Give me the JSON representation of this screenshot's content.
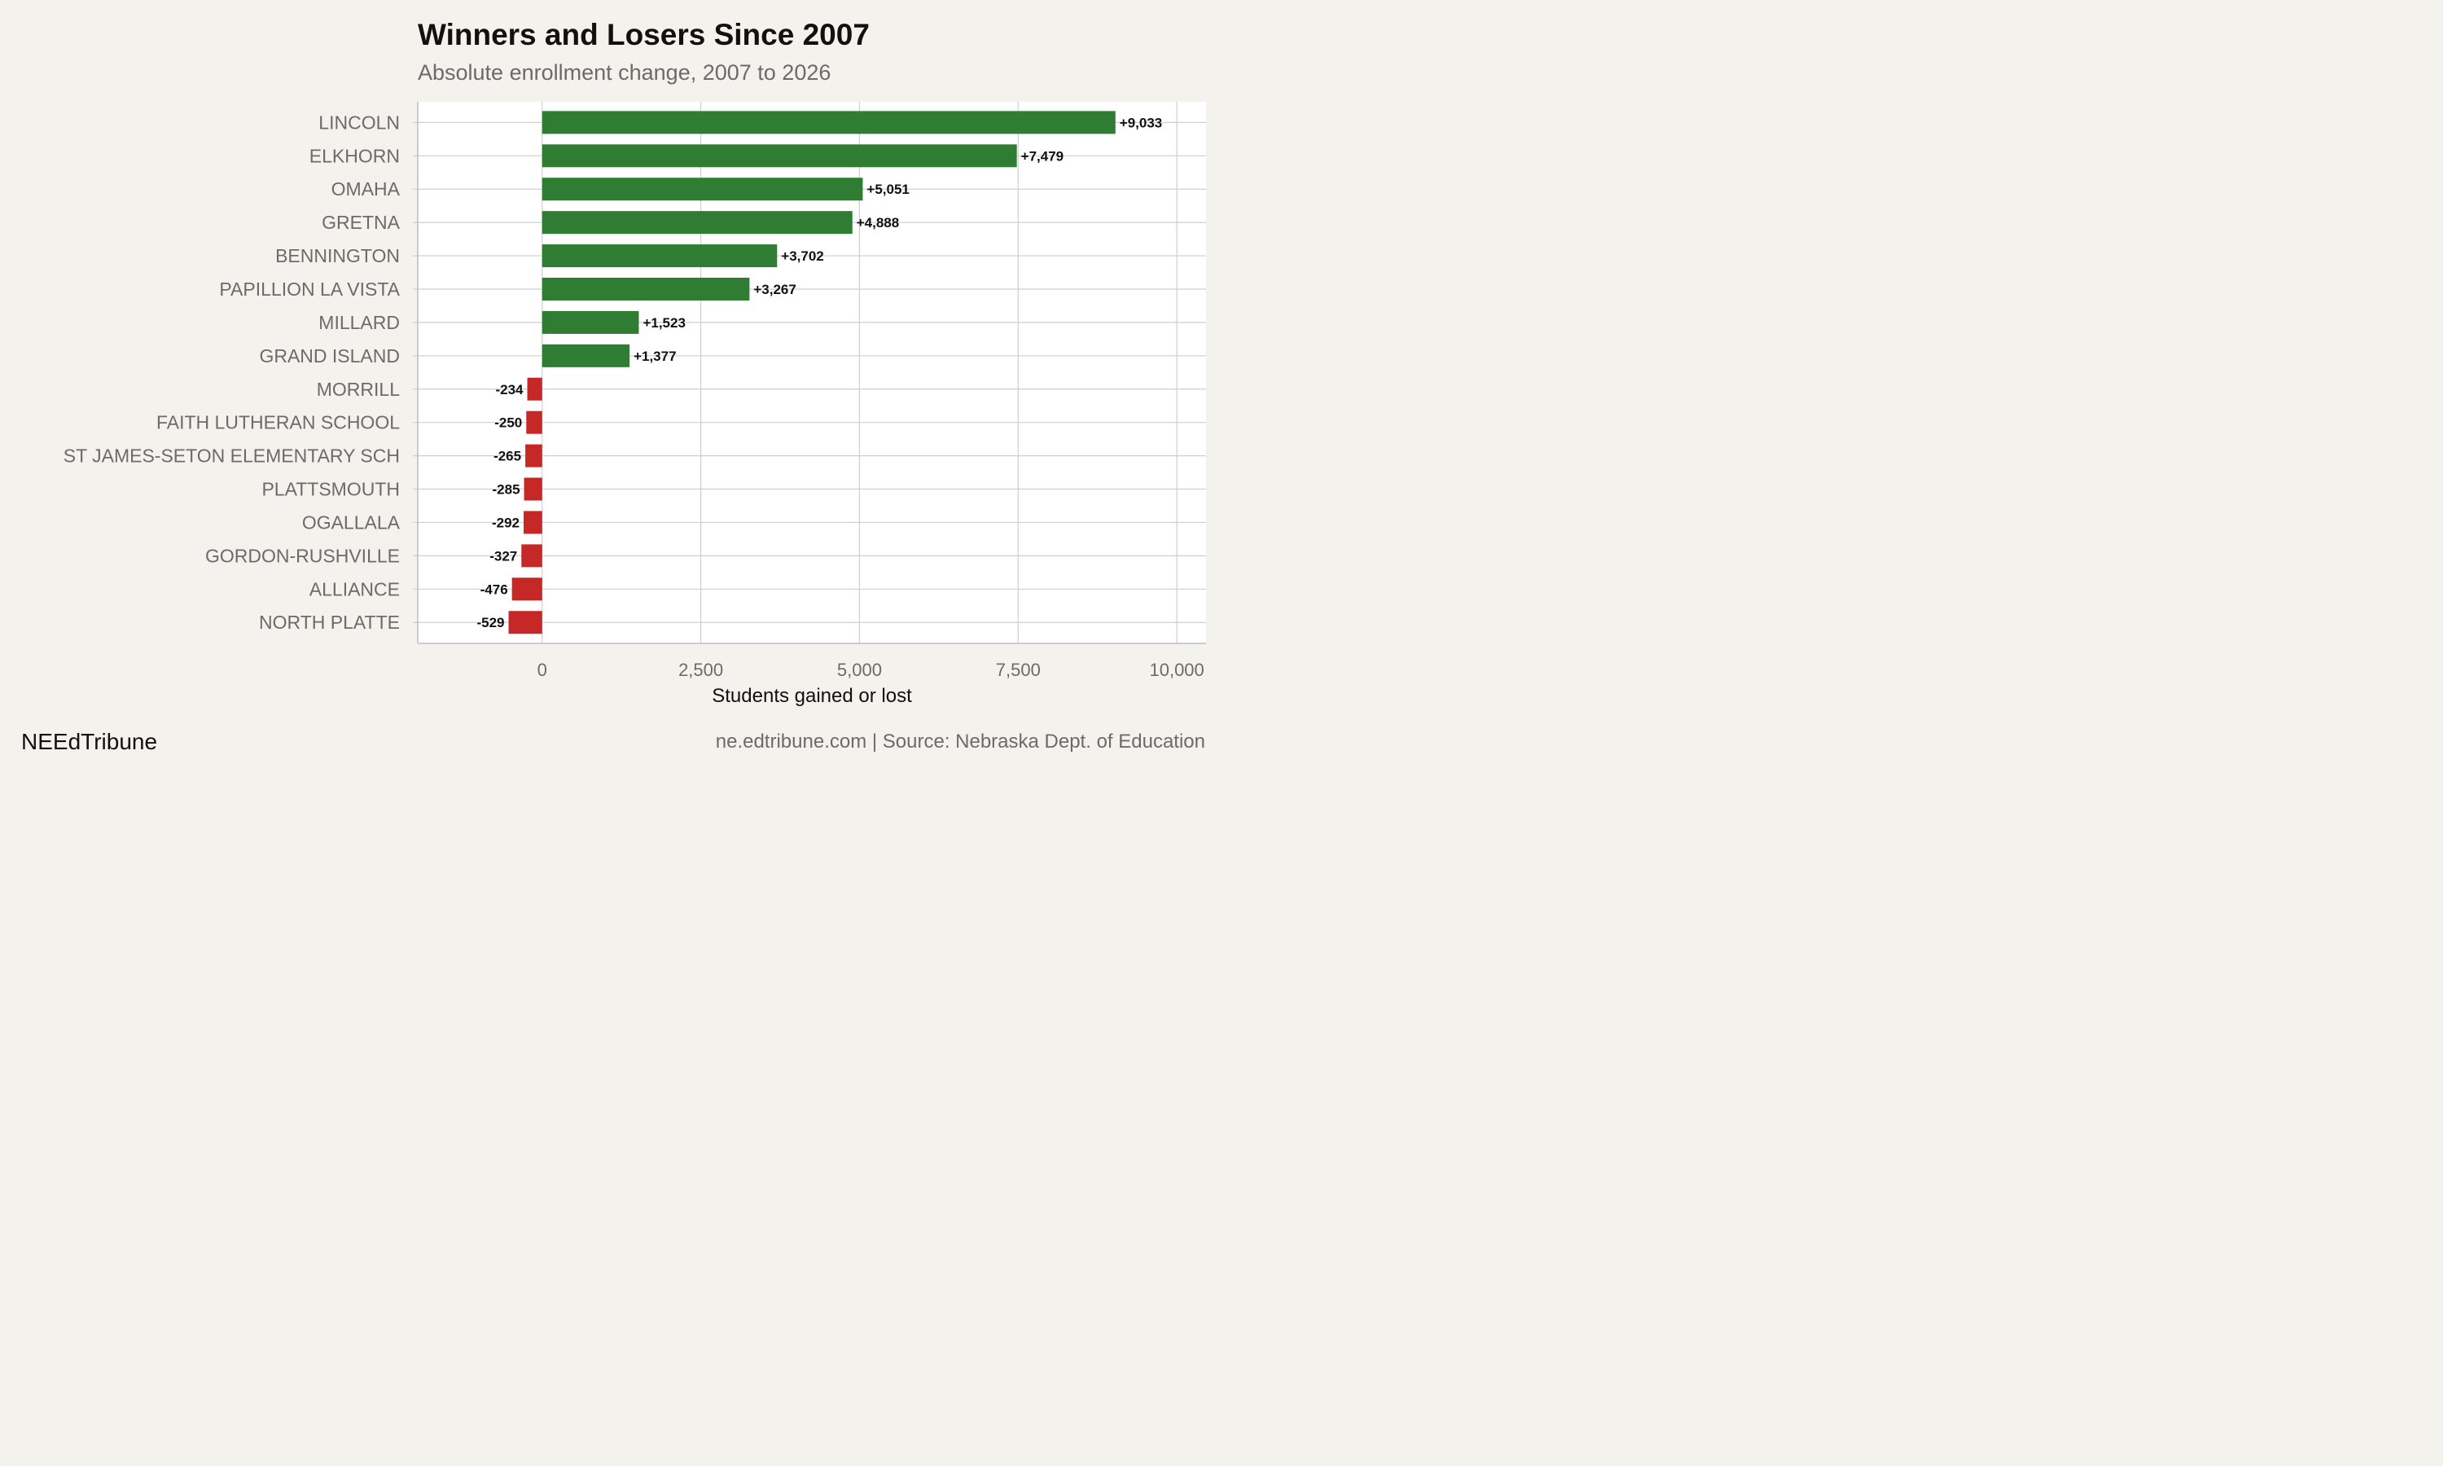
{
  "header": {
    "title": "Winners and Losers Since 2007",
    "subtitle": "Absolute enrollment change, 2007 to 2026"
  },
  "footer": {
    "brand": "NEEdTribune",
    "source": "ne.edtribune.com | Source: Nebraska Dept. of Education"
  },
  "colors": {
    "gain": "#2e7d32",
    "loss": "#c62828",
    "background": "#f4f2ed",
    "plot_background": "#ffffff",
    "grid": "#cfcfcf"
  },
  "chart_data": {
    "type": "bar",
    "orientation": "horizontal",
    "title": "Winners and Losers Since 2007",
    "subtitle": "Absolute enrollment change, 2007 to 2026",
    "xlabel": "Students gained or lost",
    "ylabel": "",
    "xlim": [
      -1960,
      10460
    ],
    "xticks": [
      0,
      2500,
      5000,
      7500,
      10000
    ],
    "xtick_labels": [
      "0",
      "2,500",
      "5,000",
      "7,500",
      "10,000"
    ],
    "grid": true,
    "categories": [
      "LINCOLN",
      "ELKHORN",
      "OMAHA",
      "GRETNA",
      "BENNINGTON",
      "PAPILLION LA VISTA",
      "MILLARD",
      "GRAND ISLAND",
      "MORRILL",
      "FAITH LUTHERAN SCHOOL",
      "ST JAMES-SETON ELEMENTARY SCH",
      "PLATTSMOUTH",
      "OGALLALA",
      "GORDON-RUSHVILLE",
      "ALLIANCE",
      "NORTH PLATTE"
    ],
    "values": [
      9033,
      7479,
      5051,
      4888,
      3702,
      3267,
      1523,
      1377,
      -234,
      -250,
      -265,
      -285,
      -292,
      -327,
      -476,
      -529
    ],
    "value_labels": [
      "+9,033",
      "+7,479",
      "+5,051",
      "+4,888",
      "+3,702",
      "+3,267",
      "+1,523",
      "+1,377",
      "-234",
      "-250",
      "-265",
      "-285",
      "-292",
      "-327",
      "-476",
      "-529"
    ]
  }
}
